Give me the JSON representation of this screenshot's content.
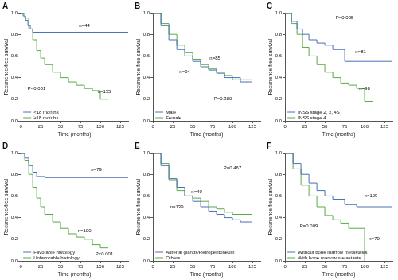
{
  "chart_data": [
    {
      "type": "line",
      "title": "A",
      "x_label": "Time (months)",
      "y_label": "Recurrence-free survival",
      "xlim": [
        0,
        135
      ],
      "xticks": [
        0,
        25,
        50,
        75,
        100,
        125
      ],
      "ylim": [
        0,
        1
      ],
      "yticks": [
        {
          "value": 0,
          "label": "0.0"
        },
        {
          "value": 0.2,
          "label": "0.2"
        },
        {
          "value": 0.4,
          "label": "0.4"
        },
        {
          "value": 0.6,
          "label": "0.6"
        },
        {
          "value": 0.8,
          "label": "0.8"
        },
        {
          "value": 1,
          "label": "1.0"
        }
      ],
      "grid": false,
      "legend": "lower left",
      "series": [
        {
          "name": "<18 months",
          "color": "#4a6fb5",
          "line_style": "step",
          "x": [
            0,
            3,
            6,
            9,
            12,
            15,
            135
          ],
          "values": [
            1,
            0.97,
            0.93,
            0.88,
            0.85,
            0.82,
            0.82
          ]
        },
        {
          "name": "≥18 months",
          "color": "#5aaa46",
          "line_style": "step",
          "x": [
            0,
            5,
            10,
            15,
            20,
            25,
            30,
            40,
            50,
            60,
            70,
            80,
            90,
            100,
            110
          ],
          "values": [
            1,
            0.95,
            0.85,
            0.75,
            0.65,
            0.58,
            0.52,
            0.45,
            0.4,
            0.36,
            0.33,
            0.3,
            0.28,
            0.2,
            0.2
          ]
        }
      ],
      "annotations": [
        {
          "text": "n=44",
          "x": 80,
          "y": 0.88
        },
        {
          "text": "n=135",
          "x": 105,
          "y": 0.27
        },
        {
          "text": "P<0.001",
          "x": 20,
          "y": 0.3
        }
      ]
    },
    {
      "type": "line",
      "title": "B",
      "x_label": "Time (months)",
      "y_label": "Recurrence-free survival",
      "xlim": [
        0,
        135
      ],
      "xticks": [
        0,
        25,
        50,
        75,
        100,
        125
      ],
      "ylim": [
        0,
        1
      ],
      "yticks": [
        {
          "value": 0,
          "label": "0.0"
        },
        {
          "value": 0.2,
          "label": "0.2"
        },
        {
          "value": 0.4,
          "label": "0.4"
        },
        {
          "value": 0.6,
          "label": "0.6"
        },
        {
          "value": 0.8,
          "label": "0.8"
        },
        {
          "value": 1,
          "label": "1.0"
        }
      ],
      "grid": false,
      "legend": "lower left",
      "series": [
        {
          "name": "Male",
          "color": "#4a6fb5",
          "line_style": "step",
          "x": [
            0,
            10,
            20,
            30,
            40,
            50,
            60,
            70,
            80,
            90,
            100,
            110,
            125
          ],
          "values": [
            1,
            0.88,
            0.75,
            0.66,
            0.6,
            0.55,
            0.5,
            0.47,
            0.44,
            0.4,
            0.4,
            0.36,
            0.36
          ]
        },
        {
          "name": "Female",
          "color": "#5aaa46",
          "line_style": "step",
          "x": [
            0,
            10,
            20,
            30,
            40,
            50,
            60,
            70,
            80,
            90,
            100,
            110,
            125
          ],
          "values": [
            1,
            0.9,
            0.8,
            0.7,
            0.63,
            0.57,
            0.52,
            0.48,
            0.45,
            0.42,
            0.38,
            0.38,
            0.38
          ]
        }
      ],
      "annotations": [
        {
          "text": "n=85",
          "x": 78,
          "y": 0.58
        },
        {
          "text": "n=94",
          "x": 40,
          "y": 0.45
        },
        {
          "text": "P=0.380",
          "x": 88,
          "y": 0.2
        }
      ]
    },
    {
      "type": "line",
      "title": "C",
      "x_label": "Time (months)",
      "y_label": "Recurrence-free survival",
      "xlim": [
        0,
        135
      ],
      "xticks": [
        0,
        25,
        50,
        75,
        100,
        125
      ],
      "ylim": [
        0,
        1
      ],
      "yticks": [
        {
          "value": 0,
          "label": "0.0"
        },
        {
          "value": 0.2,
          "label": "0.2"
        },
        {
          "value": 0.4,
          "label": "0.4"
        },
        {
          "value": 0.6,
          "label": "0.6"
        },
        {
          "value": 0.8,
          "label": "0.8"
        },
        {
          "value": 1,
          "label": "1.0"
        }
      ],
      "grid": false,
      "legend": "lower left",
      "series": [
        {
          "name": "INSS stage 2, 3, 4S",
          "color": "#4a6fb5",
          "line_style": "step",
          "x": [
            0,
            8,
            15,
            22,
            30,
            40,
            50,
            60,
            75,
            90,
            135
          ],
          "values": [
            1,
            0.92,
            0.85,
            0.8,
            0.75,
            0.72,
            0.7,
            0.66,
            0.55,
            0.55,
            0.55
          ]
        },
        {
          "name": "INSS stage 4",
          "color": "#5aaa46",
          "line_style": "step",
          "x": [
            0,
            8,
            15,
            22,
            30,
            40,
            50,
            60,
            70,
            80,
            90,
            100,
            110
          ],
          "values": [
            1,
            0.9,
            0.8,
            0.68,
            0.6,
            0.52,
            0.45,
            0.4,
            0.35,
            0.33,
            0.3,
            0.18,
            0.18
          ]
        }
      ],
      "annotations": [
        {
          "text": "P=0.005",
          "x": 75,
          "y": 0.95
        },
        {
          "text": "n=81",
          "x": 95,
          "y": 0.64
        },
        {
          "text": "n=98",
          "x": 100,
          "y": 0.3
        }
      ]
    },
    {
      "type": "line",
      "title": "D",
      "x_label": "Time (months)",
      "y_label": "Recurrence-free survival",
      "xlim": [
        0,
        135
      ],
      "xticks": [
        0,
        25,
        50,
        75,
        100,
        125
      ],
      "ylim": [
        0,
        1
      ],
      "yticks": [
        {
          "value": 0,
          "label": "0.0"
        },
        {
          "value": 0.2,
          "label": "0.2"
        },
        {
          "value": 0.4,
          "label": "0.4"
        },
        {
          "value": 0.6,
          "label": "0.6"
        },
        {
          "value": 0.8,
          "label": "0.8"
        },
        {
          "value": 1,
          "label": "1.0"
        }
      ],
      "grid": false,
      "legend": "lower left",
      "series": [
        {
          "name": "Favorable histology",
          "color": "#4a6fb5",
          "line_style": "step",
          "x": [
            0,
            5,
            10,
            15,
            20,
            30,
            135
          ],
          "values": [
            1,
            0.95,
            0.88,
            0.82,
            0.78,
            0.77,
            0.77
          ]
        },
        {
          "name": "Unfavorable histology",
          "color": "#5aaa46",
          "line_style": "step",
          "x": [
            0,
            5,
            10,
            15,
            20,
            25,
            30,
            40,
            50,
            60,
            70,
            80,
            90,
            100,
            110
          ],
          "values": [
            1,
            0.93,
            0.8,
            0.68,
            0.58,
            0.5,
            0.43,
            0.36,
            0.3,
            0.25,
            0.22,
            0.2,
            0.15,
            0.12,
            0.12
          ]
        }
      ],
      "annotations": [
        {
          "text": "n=79",
          "x": 95,
          "y": 0.84
        },
        {
          "text": "n=100",
          "x": 80,
          "y": 0.28
        },
        {
          "text": "P<0.001",
          "x": 105,
          "y": 0.06
        }
      ]
    },
    {
      "type": "line",
      "title": "E",
      "x_label": "Time (months)",
      "y_label": "Recurrence-free survival",
      "xlim": [
        0,
        135
      ],
      "xticks": [
        0,
        25,
        50,
        75,
        100,
        125
      ],
      "ylim": [
        0,
        1
      ],
      "yticks": [
        {
          "value": 0,
          "label": "0.0"
        },
        {
          "value": 0.2,
          "label": "0.2"
        },
        {
          "value": 0.4,
          "label": "0.4"
        },
        {
          "value": 0.6,
          "label": "0.6"
        },
        {
          "value": 0.8,
          "label": "0.8"
        },
        {
          "value": 1,
          "label": "1.0"
        }
      ],
      "grid": false,
      "legend": "lower left",
      "series": [
        {
          "name": "Adrenal glands/Retroperitoneum",
          "color": "#4a6fb5",
          "line_style": "step",
          "x": [
            0,
            10,
            20,
            30,
            40,
            50,
            60,
            70,
            80,
            90,
            100,
            110,
            125
          ],
          "values": [
            1,
            0.88,
            0.76,
            0.68,
            0.6,
            0.55,
            0.5,
            0.46,
            0.43,
            0.4,
            0.38,
            0.36,
            0.36
          ]
        },
        {
          "name": "Others",
          "color": "#5aaa46",
          "line_style": "step",
          "x": [
            0,
            10,
            20,
            30,
            40,
            50,
            60,
            70,
            80,
            90,
            100,
            110,
            125
          ],
          "values": [
            1,
            0.9,
            0.75,
            0.65,
            0.6,
            0.58,
            0.55,
            0.5,
            0.48,
            0.45,
            0.43,
            0.43,
            0.43
          ]
        }
      ],
      "annotations": [
        {
          "text": "P=0.467",
          "x": 100,
          "y": 0.86
        },
        {
          "text": "n=40",
          "x": 55,
          "y": 0.64
        },
        {
          "text": "n=139",
          "x": 30,
          "y": 0.5
        }
      ]
    },
    {
      "type": "line",
      "title": "F",
      "x_label": "Time (months)",
      "y_label": "Recurrence-free survival",
      "xlim": [
        0,
        135
      ],
      "xticks": [
        0,
        25,
        50,
        75,
        100,
        125
      ],
      "ylim": [
        0,
        1
      ],
      "yticks": [
        {
          "value": 0,
          "label": "0.0"
        },
        {
          "value": 0.2,
          "label": "0.2"
        },
        {
          "value": 0.4,
          "label": "0.4"
        },
        {
          "value": 0.6,
          "label": "0.6"
        },
        {
          "value": 0.8,
          "label": "0.8"
        },
        {
          "value": 1,
          "label": "1.0"
        }
      ],
      "grid": false,
      "legend": "lower left",
      "series": [
        {
          "name": "Without bone marrow metastasis",
          "color": "#4a6fb5",
          "line_style": "step",
          "x": [
            0,
            10,
            20,
            30,
            40,
            50,
            60,
            75,
            90,
            135
          ],
          "values": [
            1,
            0.9,
            0.8,
            0.72,
            0.65,
            0.6,
            0.57,
            0.52,
            0.5,
            0.5
          ]
        },
        {
          "name": "With bone marrow metastasis",
          "color": "#5aaa46",
          "line_style": "step",
          "x": [
            0,
            10,
            20,
            30,
            40,
            50,
            60,
            70,
            80,
            90,
            100
          ],
          "values": [
            1,
            0.85,
            0.7,
            0.6,
            0.5,
            0.42,
            0.38,
            0.35,
            0.3,
            0.3,
            0
          ]
        }
      ],
      "annotations": [
        {
          "text": "n=109",
          "x": 108,
          "y": 0.6
        },
        {
          "text": "n=70",
          "x": 112,
          "y": 0.2
        },
        {
          "text": "P=0.009",
          "x": 30,
          "y": 0.32
        }
      ]
    }
  ]
}
